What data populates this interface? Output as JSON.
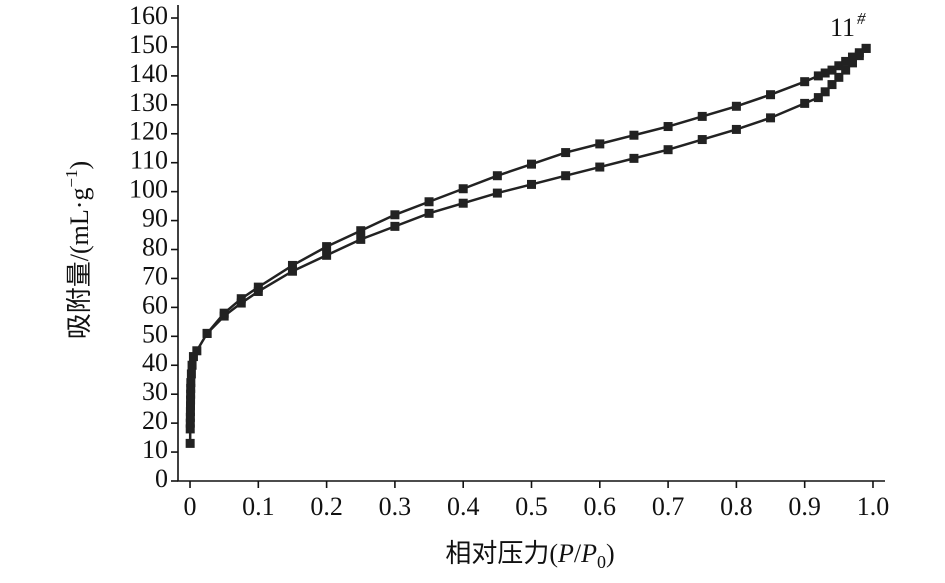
{
  "chart_data": {
    "type": "line",
    "xlabel_parts": [
      "相对压力(",
      "P",
      "/",
      "P",
      "0",
      ")"
    ],
    "ylabel_parts": [
      "吸附量/(mL·g",
      "−1",
      ")"
    ],
    "annotation": "11",
    "annotation_sup": "#",
    "xlim": [
      -0.0176,
      1.0176
    ],
    "ylim": [
      0,
      164.5
    ],
    "xticks": [
      0,
      0.1,
      0.2,
      0.3,
      0.4,
      0.5,
      0.6,
      0.7,
      0.8,
      0.9,
      {
        "value": 1,
        "label": "1.0"
      }
    ],
    "yticks": [
      0,
      10,
      20,
      30,
      40,
      50,
      60,
      70,
      80,
      90,
      100,
      110,
      120,
      130,
      140,
      150,
      160
    ],
    "series": [
      {
        "color": "#222222",
        "x": [
          0.0002,
          0.0003,
          0.0004,
          0.0005,
          0.0006,
          0.0007,
          0.0008,
          0.0009,
          0.001,
          0.0012,
          0.002,
          0.003,
          0.005,
          0.01,
          0.025,
          0.05,
          0.075,
          0.1,
          0.15,
          0.2,
          0.25,
          0.3,
          0.35,
          0.4,
          0.45,
          0.5,
          0.55,
          0.6,
          0.65,
          0.7,
          0.75,
          0.8,
          0.85,
          0.9,
          0.92,
          0.93,
          0.94,
          0.95,
          0.96,
          0.97,
          0.98,
          0.99
        ],
        "values": [
          13,
          18,
          20,
          22,
          24,
          26,
          28,
          30,
          32,
          34,
          37,
          40,
          43,
          45,
          51,
          57,
          61.5,
          65.5,
          72.5,
          78,
          83.5,
          88,
          92.5,
          96,
          99.5,
          102.5,
          105.5,
          108.5,
          111.5,
          114.5,
          118,
          121.5,
          125.5,
          130.5,
          132.5,
          134.5,
          137,
          139.5,
          142,
          144.5,
          147,
          149.5
        ]
      },
      {
        "color": "#222222",
        "x": [
          0.99,
          0.98,
          0.97,
          0.96,
          0.95,
          0.94,
          0.93,
          0.92,
          0.9,
          0.85,
          0.8,
          0.75,
          0.7,
          0.65,
          0.6,
          0.55,
          0.5,
          0.45,
          0.4,
          0.35,
          0.3,
          0.25,
          0.2,
          0.15,
          0.1,
          0.075,
          0.05,
          0.025
        ],
        "values": [
          149.5,
          148,
          146.5,
          145,
          143.5,
          142,
          141,
          140,
          138,
          133.5,
          129.5,
          126,
          122.5,
          119.5,
          116.5,
          113.5,
          109.5,
          105.5,
          101,
          96.5,
          92,
          86.5,
          81,
          74.5,
          67,
          63,
          58,
          51
        ]
      }
    ]
  }
}
